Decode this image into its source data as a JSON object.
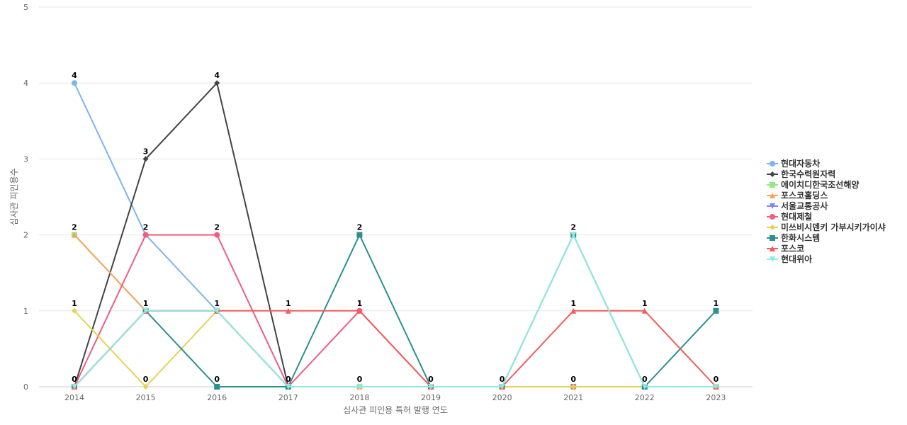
{
  "chart_data": {
    "type": "line",
    "xlabel": "심사관 피인용 특허 발행 연도",
    "ylabel": "심사관 피인용수",
    "ylim": [
      0,
      5
    ],
    "yticks": [
      0,
      1,
      2,
      3,
      4,
      5
    ],
    "categories": [
      "2014",
      "2015",
      "2016",
      "2017",
      "2018",
      "2019",
      "2020",
      "2021",
      "2022",
      "2023"
    ],
    "grid": "horizontal",
    "legend_position": "right",
    "series": [
      {
        "name": "현대자동차",
        "color": "#7cb5ec",
        "marker": "circle",
        "values": [
          4,
          2,
          1,
          0,
          0,
          0,
          0,
          0,
          0,
          0
        ]
      },
      {
        "name": "한국수력원자력",
        "color": "#434348",
        "marker": "diamond",
        "values": [
          0,
          3,
          4,
          0,
          0,
          0,
          0,
          0,
          0,
          0
        ]
      },
      {
        "name": "에이치디한국조선해양",
        "color": "#90ed7d",
        "marker": "square",
        "values": [
          2,
          1,
          1,
          0,
          0,
          0,
          0,
          0,
          0,
          0
        ]
      },
      {
        "name": "포스코홀딩스",
        "color": "#f7a35c",
        "marker": "triangle",
        "values": [
          2,
          1,
          1,
          0,
          0,
          0,
          0,
          0,
          0,
          0
        ]
      },
      {
        "name": "서울교통공사",
        "color": "#8085e9",
        "marker": "triangle-down",
        "values": [
          0,
          1,
          1,
          0,
          0,
          0,
          0,
          0,
          0,
          0
        ]
      },
      {
        "name": "현대제철",
        "color": "#f15c80",
        "marker": "circle",
        "values": [
          0,
          2,
          2,
          0,
          1,
          0,
          0,
          0,
          0,
          0
        ]
      },
      {
        "name": "미쓰비시덴키 가부시키가이샤",
        "color": "#e4d354",
        "marker": "diamond",
        "values": [
          1,
          0,
          1,
          0,
          0,
          0,
          0,
          0,
          0,
          0
        ]
      },
      {
        "name": "한화시스템",
        "color": "#2b908f",
        "marker": "square",
        "values": [
          0,
          1,
          0,
          0,
          2,
          0,
          0,
          2,
          0,
          1
        ]
      },
      {
        "name": "포스코",
        "color": "#f45b5b",
        "marker": "triangle",
        "values": [
          0,
          1,
          1,
          1,
          1,
          0,
          0,
          1,
          1,
          0
        ]
      },
      {
        "name": "현대위아",
        "color": "#91e8e1",
        "marker": "triangle-down",
        "values": [
          0,
          1,
          1,
          0,
          0,
          0,
          0,
          2,
          0,
          0
        ]
      }
    ],
    "data_labels": [
      {
        "x": "2014",
        "y": 4,
        "text": "4"
      },
      {
        "x": "2014",
        "y": 2,
        "text": "2"
      },
      {
        "x": "2014",
        "y": 1,
        "text": "1"
      },
      {
        "x": "2014",
        "y": 0,
        "text": "0"
      },
      {
        "x": "2015",
        "y": 3,
        "text": "3"
      },
      {
        "x": "2015",
        "y": 2,
        "text": "2"
      },
      {
        "x": "2015",
        "y": 1,
        "text": "1"
      },
      {
        "x": "2015",
        "y": 0,
        "text": "0"
      },
      {
        "x": "2016",
        "y": 4,
        "text": "4"
      },
      {
        "x": "2016",
        "y": 2,
        "text": "2"
      },
      {
        "x": "2016",
        "y": 1,
        "text": "1"
      },
      {
        "x": "2016",
        "y": 0,
        "text": "0"
      },
      {
        "x": "2017",
        "y": 1,
        "text": "1"
      },
      {
        "x": "2017",
        "y": 0,
        "text": "0"
      },
      {
        "x": "2018",
        "y": 2,
        "text": "2"
      },
      {
        "x": "2018",
        "y": 1,
        "text": "1"
      },
      {
        "x": "2018",
        "y": 0,
        "text": "0"
      },
      {
        "x": "2019",
        "y": 0,
        "text": "0"
      },
      {
        "x": "2020",
        "y": 0,
        "text": "0"
      },
      {
        "x": "2021",
        "y": 2,
        "text": "2"
      },
      {
        "x": "2021",
        "y": 1,
        "text": "1"
      },
      {
        "x": "2021",
        "y": 0,
        "text": "0"
      },
      {
        "x": "2022",
        "y": 1,
        "text": "1"
      },
      {
        "x": "2022",
        "y": 0,
        "text": "0"
      },
      {
        "x": "2023",
        "y": 1,
        "text": "1"
      },
      {
        "x": "2023",
        "y": 0,
        "text": "0"
      }
    ]
  }
}
